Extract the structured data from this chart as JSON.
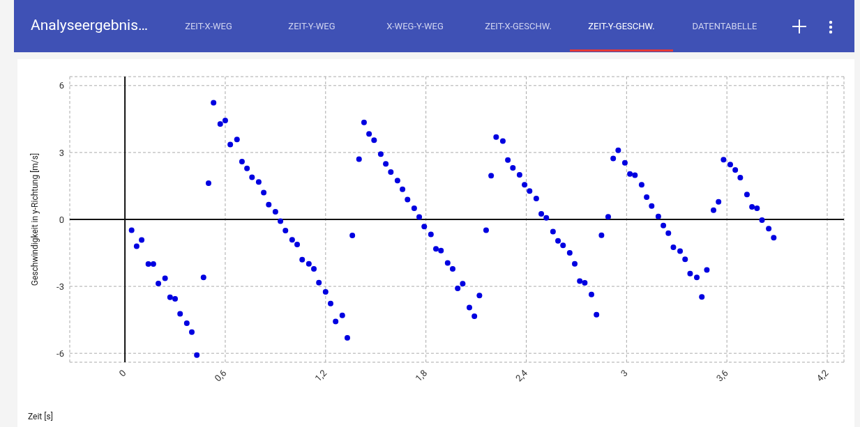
{
  "chart_data": {
    "type": "scatter",
    "title": "Analyseergebnis…",
    "annotations": [
      "ZEIT-X-WEG",
      "ZEIT-Y-WEG",
      "X-WEG-Y-WEG",
      "ZEIT-X-GESCHW.",
      "ZEIT-Y-GESCHW.",
      "DATENTABELLE"
    ],
    "xlabel": "Zeit [s]",
    "ylabel": "Geschwindigkeit in y-Richtung [m/s]",
    "x": [
      0.04,
      0.07,
      0.1,
      0.14,
      0.17,
      0.2,
      0.24,
      0.27,
      0.3,
      0.33,
      0.37,
      0.4,
      0.43,
      0.47,
      0.5,
      0.53,
      0.57,
      0.6,
      0.63,
      0.67,
      0.7,
      0.73,
      0.76,
      0.8,
      0.83,
      0.86,
      0.9,
      0.93,
      0.96,
      1.0,
      1.03,
      1.06,
      1.1,
      1.13,
      1.16,
      1.2,
      1.23,
      1.26,
      1.3,
      1.33,
      1.36,
      1.4,
      1.43,
      1.46,
      1.49,
      1.53,
      1.56,
      1.59,
      1.63,
      1.66,
      1.69,
      1.73,
      1.76,
      1.79,
      1.83,
      1.86,
      1.89,
      1.93,
      1.96,
      1.99,
      2.02,
      2.06,
      2.09,
      2.12,
      2.16,
      2.19,
      2.22,
      2.26,
      2.29,
      2.32,
      2.36,
      2.39,
      2.42,
      2.46,
      2.49,
      2.52,
      2.56,
      2.59,
      2.62,
      2.66,
      2.69,
      2.72,
      2.75,
      2.79,
      2.82,
      2.85,
      2.89,
      2.92,
      2.95,
      2.99,
      3.02,
      3.05,
      3.09,
      3.12,
      3.15,
      3.19,
      3.22,
      3.25,
      3.28,
      3.32,
      3.35,
      3.38,
      3.42,
      3.45,
      3.48,
      3.52,
      3.55,
      3.58,
      3.62,
      3.65,
      3.68,
      3.72,
      3.75,
      3.78,
      3.81,
      3.85,
      3.88
    ],
    "series": [
      {
        "color": "#0000e0",
        "values": [
          -0.48,
          -1.2,
          -0.92,
          -2.0,
          -2.0,
          -2.87,
          -2.64,
          -3.49,
          -3.56,
          -4.23,
          -4.65,
          -5.05,
          -6.08,
          -2.6,
          1.62,
          5.23,
          4.28,
          4.43,
          3.36,
          3.58,
          2.59,
          2.29,
          1.89,
          1.68,
          1.2,
          0.66,
          0.34,
          -0.08,
          -0.5,
          -0.91,
          -1.12,
          -1.8,
          -1.99,
          -2.22,
          -2.83,
          -3.25,
          -3.77,
          -4.57,
          -4.3,
          -5.31,
          -0.72,
          2.7,
          4.35,
          3.83,
          3.55,
          2.93,
          2.49,
          2.12,
          1.74,
          1.35,
          0.89,
          0.5,
          0.11,
          -0.32,
          -0.67,
          -1.32,
          -1.4,
          -1.95,
          -2.22,
          -3.09,
          -2.88,
          -3.95,
          -4.34,
          -3.41,
          -0.48,
          1.96,
          3.69,
          3.51,
          2.66,
          2.31,
          2.0,
          1.55,
          1.27,
          0.94,
          0.25,
          0.07,
          -0.55,
          -0.96,
          -1.16,
          -1.5,
          -1.99,
          -2.76,
          -2.84,
          -3.36,
          -4.27,
          -0.71,
          0.12,
          2.73,
          3.1,
          2.54,
          2.04,
          1.98,
          1.55,
          1.0,
          0.6,
          0.13,
          -0.27,
          -0.62,
          -1.25,
          -1.42,
          -1.79,
          -2.43,
          -2.6,
          -3.47,
          -2.26,
          0.41,
          0.79,
          2.68,
          2.46,
          2.22,
          1.87,
          1.12,
          0.56,
          0.5,
          -0.03,
          -0.41,
          -0.82
        ]
      }
    ],
    "xlim": [
      -0.33,
      4.3
    ],
    "ylim": [
      -6.4,
      6.4
    ],
    "xticks": [
      0,
      {
        "value": 0.6,
        "label": "0,6"
      },
      {
        "value": 1.2,
        "label": "1,2"
      },
      {
        "value": 1.8,
        "label": "1,8"
      },
      {
        "value": 2.4,
        "label": "2,4"
      },
      3,
      {
        "value": 3.6,
        "label": "3,6"
      },
      {
        "value": 4.2,
        "label": "4,2"
      }
    ],
    "yticks": [
      -6,
      -3,
      0,
      3,
      6
    ],
    "grid": true,
    "marker": "circle"
  }
}
